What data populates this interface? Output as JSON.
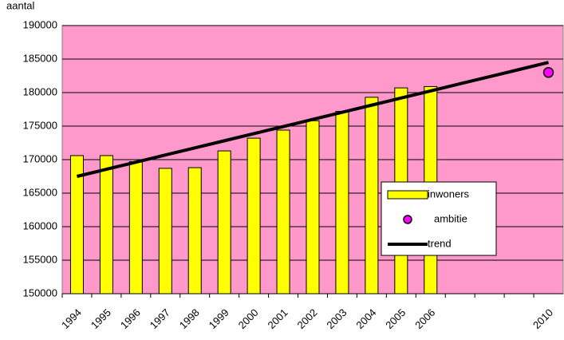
{
  "chart_data": {
    "type": "bar",
    "y_label": "aantal",
    "categories": [
      "1994",
      "1995",
      "1996",
      "1997",
      "1998",
      "1999",
      "2000",
      "2001",
      "2002",
      "2003",
      "2004",
      "2005",
      "2006",
      null,
      null,
      null,
      "2010"
    ],
    "series": [
      {
        "name": "inwoners",
        "type": "bar",
        "color": "#ffff00",
        "values": [
          170600,
          170600,
          169700,
          168700,
          168800,
          171300,
          173200,
          174400,
          175800,
          177200,
          179300,
          180700,
          180900,
          null,
          null,
          null,
          null
        ]
      },
      {
        "name": "ambitie",
        "type": "scatter",
        "color": "#ff00ff",
        "values": [
          null,
          null,
          null,
          null,
          null,
          null,
          null,
          null,
          null,
          null,
          null,
          null,
          null,
          null,
          null,
          null,
          183000
        ]
      },
      {
        "name": "trend",
        "type": "line",
        "color": "#000000",
        "values": [
          167500,
          168562.5,
          169625,
          170687.5,
          171750,
          172812.5,
          173875,
          174937.5,
          176000,
          177062.5,
          178125,
          179187.5,
          180250,
          181312.5,
          182375,
          183437.5,
          184500
        ]
      }
    ],
    "ylim": [
      150000,
      190000
    ],
    "yticks": [
      150000,
      155000,
      160000,
      165000,
      170000,
      175000,
      180000,
      185000,
      190000
    ],
    "grid": true,
    "plot_background": "#ff99cc",
    "legend": "right"
  }
}
